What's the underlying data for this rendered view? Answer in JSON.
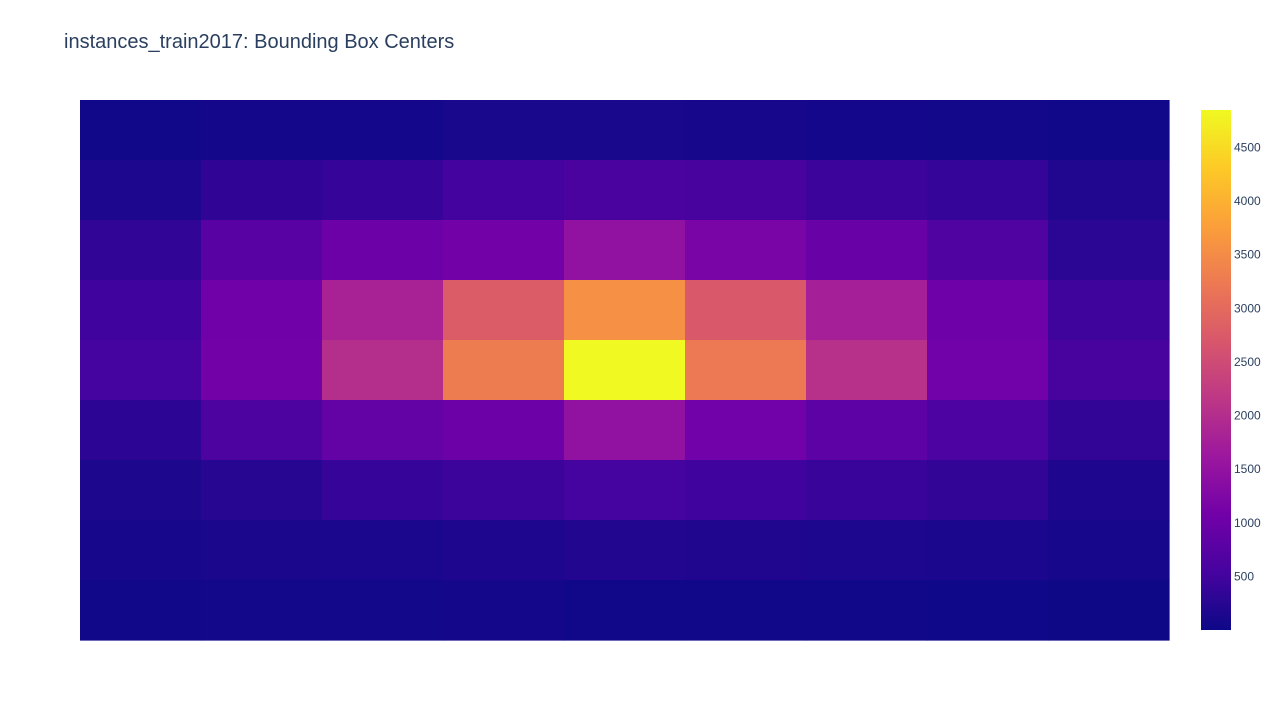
{
  "chart_data": {
    "type": "heatmap",
    "title": "instances_train2017: Bounding Box Centers",
    "xlabel": "",
    "ylabel": "",
    "grid": false,
    "legend": "colorbar-right",
    "colorscale": "Plasma",
    "colorscale_stops": [
      "#0d0887",
      "#46039f",
      "#7201a8",
      "#9c179e",
      "#bd3786",
      "#d8576b",
      "#ed7953",
      "#fb9f3a",
      "#fdca26",
      "#f0f921"
    ],
    "zmin": 0,
    "zmax": 4850,
    "colorbar_ticks": [
      500,
      1000,
      1500,
      2000,
      2500,
      3000,
      3500,
      4000,
      4500
    ],
    "colorbar_tick_labels": [
      "500",
      "1000",
      "1500",
      "2000",
      "2500",
      "3000",
      "3500",
      "4000",
      "4500"
    ],
    "z": [
      [
        40,
        70,
        80,
        110,
        110,
        90,
        80,
        60,
        30
      ],
      [
        150,
        330,
        400,
        520,
        600,
        560,
        450,
        380,
        190
      ],
      [
        340,
        770,
        1010,
        1080,
        1470,
        1180,
        960,
        670,
        280
      ],
      [
        490,
        1050,
        1810,
        2780,
        3560,
        2710,
        1760,
        1030,
        460
      ],
      [
        530,
        1090,
        2010,
        3270,
        4850,
        3220,
        2050,
        1060,
        560
      ],
      [
        300,
        610,
        890,
        1000,
        1470,
        1070,
        820,
        630,
        350
      ],
      [
        140,
        250,
        400,
        450,
        530,
        490,
        410,
        350,
        160
      ],
      [
        90,
        120,
        130,
        160,
        210,
        180,
        150,
        130,
        90
      ],
      [
        40,
        50,
        60,
        70,
        30,
        40,
        30,
        20,
        10
      ]
    ]
  }
}
